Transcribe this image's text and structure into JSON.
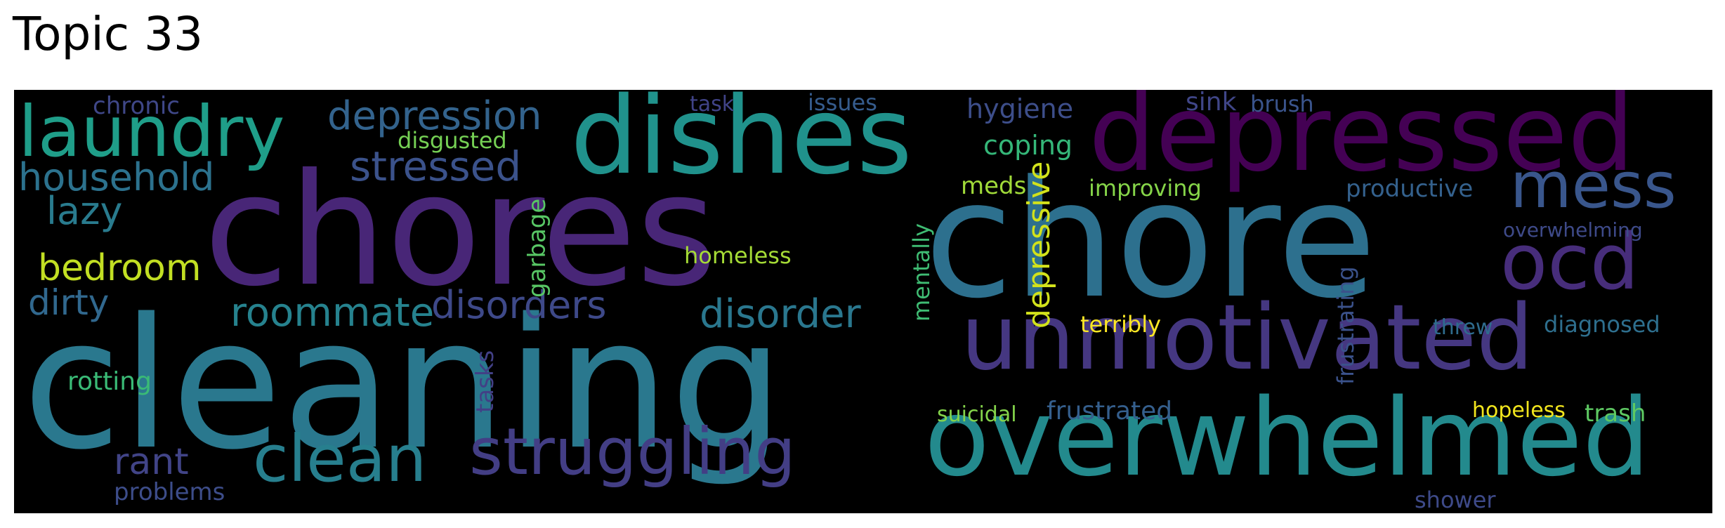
{
  "title": "Topic 33",
  "words": [
    {
      "text": "cleaning",
      "color": "#2a788e"
    },
    {
      "text": "chores",
      "color": "#482677"
    },
    {
      "text": "chore",
      "color": "#2d708e"
    },
    {
      "text": "overwhelmed",
      "color": "#238a8d"
    },
    {
      "text": "dishes",
      "color": "#20928c"
    },
    {
      "text": "depressed",
      "color": "#440154"
    },
    {
      "text": "unmotivated",
      "color": "#453781"
    },
    {
      "text": "laundry",
      "color": "#1f9e89"
    },
    {
      "text": "struggling",
      "color": "#433e85"
    },
    {
      "text": "clean",
      "color": "#277f8e"
    },
    {
      "text": "mess",
      "color": "#39568c"
    },
    {
      "text": "ocd",
      "color": "#472d7b"
    },
    {
      "text": "depression",
      "color": "#33638d"
    },
    {
      "text": "stressed",
      "color": "#3b528b"
    },
    {
      "text": "household",
      "color": "#2c728e"
    },
    {
      "text": "disorders",
      "color": "#3e4989"
    },
    {
      "text": "roommate",
      "color": "#26828e"
    },
    {
      "text": "disorder",
      "color": "#2a778e"
    },
    {
      "text": "lazy",
      "color": "#297b8e"
    },
    {
      "text": "bedroom",
      "color": "#c2df23"
    },
    {
      "text": "dirty",
      "color": "#31688e"
    },
    {
      "text": "rant",
      "color": "#414487"
    },
    {
      "text": "chronic",
      "color": "#3f4788"
    },
    {
      "text": "disgusted",
      "color": "#75d054"
    },
    {
      "text": "coping",
      "color": "#35b779"
    },
    {
      "text": "hygiene",
      "color": "#3d4e8a"
    },
    {
      "text": "sink",
      "color": "#404688"
    },
    {
      "text": "brush",
      "color": "#3a548c"
    },
    {
      "text": "task",
      "color": "#404387"
    },
    {
      "text": "issues",
      "color": "#365c8d"
    },
    {
      "text": "meds",
      "color": "#a0da39"
    },
    {
      "text": "improving",
      "color": "#86d549"
    },
    {
      "text": "productive",
      "color": "#34618d"
    },
    {
      "text": "overwhelming",
      "color": "#3e4a89"
    },
    {
      "text": "homeless",
      "color": "#a5db36"
    },
    {
      "text": "terribly",
      "color": "#fde725"
    },
    {
      "text": "threw",
      "color": "#2f6c8e"
    },
    {
      "text": "diagnosed",
      "color": "#2e6f8e"
    },
    {
      "text": "rotting",
      "color": "#3aba76"
    },
    {
      "text": "problems",
      "color": "#3d4d8a"
    },
    {
      "text": "suicidal",
      "color": "#84d44b"
    },
    {
      "text": "frustrated",
      "color": "#355f8d"
    },
    {
      "text": "hopeless",
      "color": "#f1e51d"
    },
    {
      "text": "trash",
      "color": "#5ec962"
    },
    {
      "text": "shower",
      "color": "#3e4a89"
    },
    {
      "text": "garbage",
      "color": "#58c765"
    },
    {
      "text": "mentally",
      "color": "#3fbc73"
    },
    {
      "text": "depressive",
      "color": "#d2e21b"
    },
    {
      "text": "tasks",
      "color": "#424086"
    },
    {
      "text": "frustrating",
      "color": "#3b528b"
    }
  ]
}
